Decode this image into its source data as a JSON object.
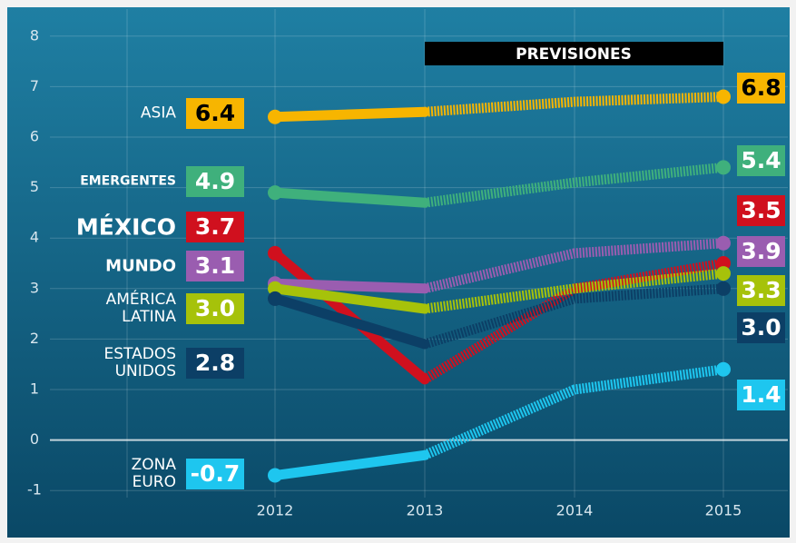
{
  "chart_data": {
    "type": "line",
    "annotation": "PREVISIONES",
    "categories": [
      "2012",
      "2013",
      "2014",
      "2015"
    ],
    "ylim": [
      -1.5,
      8.5
    ],
    "yticks": [
      -1,
      0,
      1,
      2,
      3,
      4,
      5,
      6,
      7,
      8
    ],
    "grid": true,
    "series": [
      {
        "name": "ASIA",
        "color": "#f7b500",
        "values": [
          6.4,
          6.5,
          6.7,
          6.8
        ],
        "value_labels": [
          null,
          null,
          null,
          null
        ]
      },
      {
        "name": "EMERGENTES",
        "color": "#3fb07c",
        "values": [
          4.9,
          4.7,
          5.1,
          5.4
        ],
        "value_labels": [
          null,
          null,
          null,
          null
        ]
      },
      {
        "name": "MÉXICO",
        "color": "#d0101e",
        "values": [
          3.7,
          1.2,
          3.0,
          3.5
        ],
        "value_labels": [
          null,
          null,
          null,
          null
        ]
      },
      {
        "name": "MUNDO",
        "color": "#9a5db0",
        "values": [
          3.1,
          3.0,
          3.7,
          3.9
        ],
        "value_labels": [
          null,
          null,
          null,
          null
        ]
      },
      {
        "name": "AMÉRICA LATINA",
        "color": "#a6c20a",
        "values": [
          3,
          2.6,
          3.0,
          3.3
        ],
        "value_labels": [
          "3.0",
          null,
          "3.0",
          null
        ]
      },
      {
        "name": "ESTADOS UNIDOS",
        "color": "#0c3f66",
        "values": [
          2.8,
          1.9,
          2.8,
          3
        ],
        "value_labels": [
          null,
          null,
          null,
          "3.0"
        ]
      },
      {
        "name": "ZONA EURO",
        "color": "#1ec6ef",
        "values": [
          -0.7,
          -0.3,
          1.0,
          1.4
        ],
        "value_labels": [
          null,
          null,
          "1.0",
          null
        ]
      }
    ]
  }
}
